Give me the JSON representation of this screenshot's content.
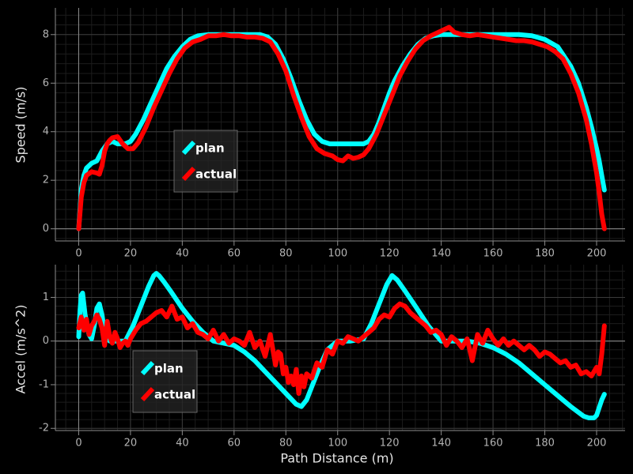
{
  "colors": {
    "background": "#000000",
    "grid_major": "#3a3a3a",
    "grid_minor": "#1c1c1c",
    "zero_line": "#8c8c8c",
    "plan": "#00ffff",
    "actual": "#ff0000",
    "legend_bg": "#262626",
    "legend_border": "#666666"
  },
  "chart_data": [
    {
      "type": "line",
      "title": "",
      "xlabel": "",
      "ylabel": "Speed (m/s)",
      "xlim": [
        -9,
        211
      ],
      "ylim": [
        -0.5,
        9.1
      ],
      "xticks": [
        0,
        20,
        40,
        60,
        80,
        100,
        120,
        140,
        160,
        180,
        200
      ],
      "yticks": [
        0,
        2,
        4,
        6,
        8
      ],
      "grid": true,
      "legend": "center-left",
      "series": [
        {
          "name": "plan",
          "color": "#00ffff",
          "x": [
            0,
            1,
            2,
            3,
            5,
            7,
            9,
            11,
            13,
            15,
            18,
            20,
            22,
            25,
            28,
            31,
            34,
            37,
            40,
            43,
            46,
            50,
            55,
            60,
            65,
            70,
            73,
            76,
            79,
            82,
            85,
            88,
            91,
            94,
            97,
            100,
            105,
            110,
            112,
            114,
            116,
            118,
            120,
            122,
            125,
            128,
            131,
            134,
            137,
            140,
            145,
            150,
            155,
            160,
            165,
            170,
            175,
            180,
            185,
            190,
            193,
            196,
            198,
            200,
            201,
            202,
            203
          ],
          "y": [
            0,
            1.6,
            2.2,
            2.5,
            2.7,
            2.8,
            3.2,
            3.5,
            3.6,
            3.5,
            3.5,
            3.6,
            3.9,
            4.5,
            5.2,
            5.9,
            6.6,
            7.1,
            7.5,
            7.8,
            7.95,
            8.0,
            8.0,
            8.0,
            8.0,
            8.0,
            7.9,
            7.6,
            7.0,
            6.2,
            5.3,
            4.5,
            3.9,
            3.6,
            3.5,
            3.5,
            3.5,
            3.5,
            3.6,
            3.9,
            4.4,
            5.0,
            5.6,
            6.1,
            6.7,
            7.2,
            7.6,
            7.85,
            7.95,
            8.0,
            8.0,
            8.0,
            8.0,
            8.0,
            8.0,
            8.0,
            7.95,
            7.8,
            7.5,
            6.7,
            6.0,
            5.0,
            4.2,
            3.3,
            2.8,
            2.2,
            1.6
          ]
        },
        {
          "name": "actual",
          "color": "#ff0000",
          "x": [
            0,
            1,
            2,
            3,
            5,
            7,
            8,
            9,
            10,
            11,
            12,
            13,
            15,
            17,
            19,
            21,
            23,
            26,
            29,
            32,
            35,
            38,
            41,
            44,
            47,
            50,
            53,
            56,
            59,
            62,
            65,
            68,
            71,
            74,
            77,
            80,
            83,
            86,
            89,
            92,
            95,
            98,
            100,
            102,
            104,
            106,
            108,
            110,
            112,
            115,
            118,
            121,
            124,
            127,
            130,
            133,
            136,
            139,
            142,
            143,
            145,
            148,
            151,
            154,
            157,
            160,
            163,
            166,
            169,
            172,
            175,
            178,
            181,
            184,
            187,
            190,
            193,
            196,
            198,
            200,
            201,
            202,
            203
          ],
          "y": [
            0,
            1.3,
            1.9,
            2.2,
            2.35,
            2.3,
            2.25,
            2.6,
            3.2,
            3.5,
            3.65,
            3.75,
            3.8,
            3.5,
            3.3,
            3.3,
            3.55,
            4.2,
            5.0,
            5.7,
            6.4,
            7.0,
            7.45,
            7.7,
            7.8,
            7.95,
            7.95,
            8.0,
            7.95,
            7.95,
            7.9,
            7.9,
            7.85,
            7.7,
            7.2,
            6.5,
            5.5,
            4.6,
            3.8,
            3.3,
            3.1,
            3.0,
            2.85,
            2.8,
            3.0,
            2.9,
            2.95,
            3.05,
            3.3,
            3.9,
            4.7,
            5.5,
            6.3,
            6.9,
            7.4,
            7.75,
            7.95,
            8.1,
            8.25,
            8.3,
            8.1,
            8.0,
            7.95,
            8.0,
            7.95,
            7.9,
            7.85,
            7.8,
            7.75,
            7.75,
            7.7,
            7.6,
            7.5,
            7.3,
            7.0,
            6.4,
            5.6,
            4.5,
            3.5,
            2.3,
            1.5,
            0.6,
            0
          ]
        }
      ]
    },
    {
      "type": "line",
      "title": "",
      "xlabel": "Path Distance (m)",
      "ylabel": "Accel (m/s^2)",
      "xlim": [
        -9,
        211
      ],
      "ylim": [
        -2.05,
        1.75
      ],
      "xticks": [
        0,
        20,
        40,
        60,
        80,
        100,
        120,
        140,
        160,
        180,
        200
      ],
      "yticks": [
        -2,
        -1,
        0,
        1
      ],
      "grid": true,
      "legend": "center-left",
      "series": [
        {
          "name": "plan",
          "color": "#00ffff",
          "x": [
            0,
            0.5,
            1,
            1.5,
            2.5,
            4,
            5,
            6,
            7,
            8,
            9,
            10,
            11,
            12,
            13,
            15,
            18,
            21,
            24,
            27,
            29,
            30,
            31,
            33,
            36,
            40,
            44,
            48,
            52,
            56,
            60,
            64,
            68,
            72,
            76,
            80,
            84,
            86,
            88,
            90,
            93,
            96,
            100,
            105,
            110,
            113,
            116,
            119,
            121,
            123,
            126,
            130,
            135,
            140,
            145,
            150,
            155,
            160,
            165,
            170,
            175,
            180,
            185,
            190,
            195,
            197,
            199,
            200,
            202,
            203
          ],
          "y": [
            0.1,
            0.7,
            1.05,
            1.1,
            0.6,
            0.15,
            0.05,
            0.35,
            0.75,
            0.85,
            0.6,
            0.2,
            0.05,
            0,
            0,
            0,
            0,
            0.35,
            0.8,
            1.25,
            1.5,
            1.55,
            1.5,
            1.35,
            1.1,
            0.75,
            0.45,
            0.2,
            0,
            -0.05,
            -0.1,
            -0.25,
            -0.45,
            -0.7,
            -0.95,
            -1.2,
            -1.45,
            -1.5,
            -1.35,
            -1.05,
            -0.6,
            -0.2,
            0,
            0,
            0.05,
            0.4,
            0.85,
            1.3,
            1.5,
            1.4,
            1.15,
            0.8,
            0.35,
            0,
            0,
            0,
            -0.05,
            -0.15,
            -0.3,
            -0.5,
            -0.75,
            -1.0,
            -1.25,
            -1.5,
            -1.72,
            -1.76,
            -1.76,
            -1.7,
            -1.35,
            -1.22
          ]
        },
        {
          "name": "actual",
          "color": "#ff0000",
          "x": [
            0,
            1,
            2,
            3,
            4,
            5,
            6,
            7,
            8,
            9,
            10,
            11,
            12,
            13,
            14,
            15,
            16,
            17,
            18,
            19,
            20,
            22,
            24,
            26,
            28,
            30,
            32,
            34,
            36,
            38,
            40,
            42,
            44,
            46,
            48,
            50,
            52,
            54,
            56,
            58,
            60,
            62,
            64,
            66,
            68,
            70,
            72,
            74,
            76,
            77,
            78,
            79,
            80,
            81,
            82,
            83,
            84,
            85,
            86,
            87,
            88,
            90,
            92,
            94,
            96,
            98,
            100,
            102,
            104,
            106,
            108,
            110,
            112,
            114,
            116,
            118,
            120,
            122,
            124,
            126,
            128,
            130,
            132,
            134,
            136,
            138,
            140,
            142,
            144,
            146,
            148,
            150,
            152,
            154,
            156,
            158,
            160,
            162,
            164,
            166,
            168,
            170,
            172,
            174,
            176,
            178,
            180,
            182,
            184,
            186,
            188,
            190,
            192,
            194,
            196,
            198,
            200,
            201,
            202,
            203
          ],
          "y": [
            0.3,
            0.55,
            0.25,
            0.5,
            0.15,
            0.35,
            0.45,
            0.6,
            0.5,
            0.3,
            -0.1,
            0.45,
            0.1,
            -0.05,
            0.2,
            0.05,
            -0.15,
            -0.05,
            0.0,
            -0.1,
            0.05,
            0.25,
            0.4,
            0.45,
            0.55,
            0.65,
            0.7,
            0.55,
            0.8,
            0.5,
            0.55,
            0.3,
            0.4,
            0.2,
            0.15,
            0.05,
            0.25,
            0.0,
            0.15,
            -0.05,
            0.05,
            0.0,
            -0.1,
            0.2,
            -0.15,
            0.0,
            -0.35,
            0.15,
            -0.55,
            -0.25,
            -0.3,
            -0.75,
            -0.6,
            -0.95,
            -0.8,
            -1.0,
            -0.65,
            -1.2,
            -0.8,
            -1.05,
            -0.75,
            -0.85,
            -0.5,
            -0.6,
            -0.2,
            -0.3,
            0.0,
            -0.05,
            0.1,
            0.05,
            0.0,
            0.1,
            0.2,
            0.3,
            0.5,
            0.6,
            0.55,
            0.75,
            0.85,
            0.8,
            0.65,
            0.55,
            0.45,
            0.35,
            0.2,
            0.25,
            0.15,
            -0.1,
            0.1,
            0.0,
            -0.15,
            0.05,
            -0.45,
            0.15,
            -0.05,
            0.25,
            0.05,
            -0.1,
            0.05,
            -0.1,
            0.0,
            -0.1,
            -0.2,
            -0.1,
            -0.2,
            -0.35,
            -0.25,
            -0.3,
            -0.4,
            -0.5,
            -0.45,
            -0.6,
            -0.55,
            -0.75,
            -0.7,
            -0.8,
            -0.6,
            -0.75,
            -0.3,
            0.35
          ]
        }
      ]
    }
  ]
}
